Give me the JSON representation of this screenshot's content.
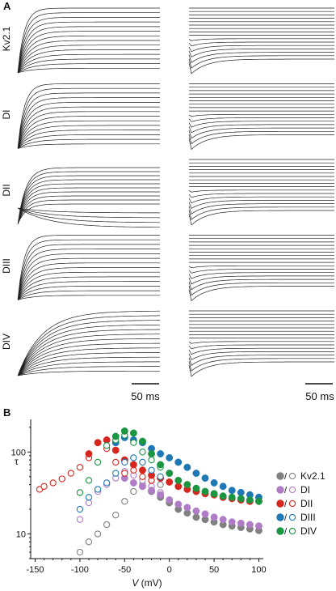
{
  "panel_a": {
    "label": "A",
    "rows": [
      "Kv2.1",
      "DI",
      "DII",
      "DIII",
      "DIV"
    ],
    "scale_left": "50 ms",
    "scale_right": "50 ms"
  },
  "panel_b": {
    "label": "B"
  },
  "colors": {
    "Kv2.1": "#808080",
    "DI": "#b07cc6",
    "DII": "#d7261e",
    "DIII": "#1f78b4",
    "DIV": "#1a9641"
  },
  "chart_data": {
    "type": "scatter",
    "title": "",
    "xlabel": "V (mV)",
    "xlabel_italic": "V",
    "xlabel_unit": " (mV)",
    "ylabel": "τ",
    "xlim": [
      -155,
      105
    ],
    "ylim": [
      5,
      250
    ],
    "yscale": "log",
    "xticks": [
      -150,
      -100,
      -50,
      0,
      50,
      100
    ],
    "xtick_labels": [
      "-150",
      "-100",
      "-50",
      "0",
      "50",
      "100"
    ],
    "yticks": [
      10,
      100
    ],
    "ytick_labels": [
      "10",
      "100"
    ],
    "legend_position": "right",
    "legend_marker_sep": "/",
    "series": [
      {
        "name": "Kv2.1",
        "key": "Kv2.1",
        "style": "open",
        "x": [
          -100,
          -90,
          -80,
          -70,
          -60,
          -50,
          -40,
          -30,
          -20,
          -10
        ],
        "y": [
          6,
          8,
          10,
          13,
          17,
          25,
          33,
          40,
          45,
          40
        ]
      },
      {
        "name": "Kv2.1",
        "key": "Kv2.1",
        "style": "filled",
        "x": [
          -20,
          -10,
          0,
          10,
          20,
          30,
          40,
          50,
          60,
          70,
          80,
          90,
          100
        ],
        "y": [
          33,
          28,
          24,
          20,
          18,
          16,
          15,
          14,
          13,
          12.5,
          12,
          11.5,
          11
        ]
      },
      {
        "name": "DI",
        "key": "DI",
        "style": "open",
        "x": [
          -100,
          -90,
          -80,
          -70,
          -60,
          -50,
          -40,
          -30,
          -20,
          -10
        ],
        "y": [
          15,
          24,
          33,
          40,
          48,
          58,
          52,
          45,
          38,
          32
        ]
      },
      {
        "name": "DI",
        "key": "DI",
        "style": "filled",
        "x": [
          -50,
          -40,
          -30,
          -20,
          -10,
          0,
          10,
          20,
          30,
          40,
          50,
          60,
          70,
          80,
          90,
          100
        ],
        "y": [
          48,
          42,
          38,
          34,
          30,
          26,
          23,
          21,
          19,
          17.5,
          16,
          15,
          14,
          13.5,
          13,
          12.5
        ]
      },
      {
        "name": "DII",
        "key": "DII",
        "style": "open",
        "x": [
          -145,
          -140,
          -130,
          -120,
          -110,
          -100,
          -90,
          -80,
          -70,
          -60,
          -50,
          -40,
          -30,
          -20
        ],
        "y": [
          35,
          38,
          42,
          47,
          55,
          65,
          85,
          130,
          110,
          75,
          55,
          60,
          50,
          45
        ]
      },
      {
        "name": "DII",
        "key": "DII",
        "style": "filled",
        "x": [
          -90,
          -80,
          -70,
          -60,
          -50,
          -40,
          -30,
          -20,
          -10,
          0,
          10,
          20,
          30,
          40,
          50,
          60,
          70,
          80,
          90,
          100
        ],
        "y": [
          95,
          130,
          140,
          105,
          80,
          70,
          60,
          52,
          48,
          43,
          38,
          35,
          33,
          31,
          30,
          28,
          27,
          26,
          25,
          25
        ]
      },
      {
        "name": "DIII",
        "key": "DIII",
        "style": "open",
        "x": [
          -100,
          -90,
          -80,
          -70,
          -60,
          -50,
          -40,
          -30,
          -20,
          -10
        ],
        "y": [
          20,
          28,
          35,
          42,
          55,
          75,
          85,
          75,
          60,
          50
        ]
      },
      {
        "name": "DIII",
        "key": "DIII",
        "style": "filled",
        "x": [
          -60,
          -50,
          -40,
          -30,
          -20,
          -10,
          0,
          10,
          20,
          30,
          40,
          50,
          60,
          70,
          80,
          90,
          100
        ],
        "y": [
          130,
          150,
          140,
          130,
          110,
          95,
          85,
          75,
          65,
          55,
          48,
          42,
          38,
          34,
          32,
          30,
          28
        ]
      },
      {
        "name": "DIV",
        "key": "DIV",
        "style": "open",
        "x": [
          -100,
          -90,
          -80,
          -70,
          -60,
          -50,
          -40,
          -30,
          -20,
          -10,
          0
        ],
        "y": [
          32,
          45,
          75,
          120,
          140,
          160,
          130,
          100,
          80,
          65,
          55
        ]
      },
      {
        "name": "DIV",
        "key": "DIV",
        "style": "filled",
        "x": [
          -60,
          -50,
          -40,
          -30,
          -20,
          -10,
          0,
          10,
          20,
          30,
          40,
          50,
          60,
          70,
          80,
          90,
          100
        ],
        "y": [
          155,
          180,
          170,
          135,
          95,
          70,
          55,
          45,
          40,
          36,
          33,
          31,
          29,
          28,
          27,
          26,
          25
        ]
      }
    ]
  }
}
